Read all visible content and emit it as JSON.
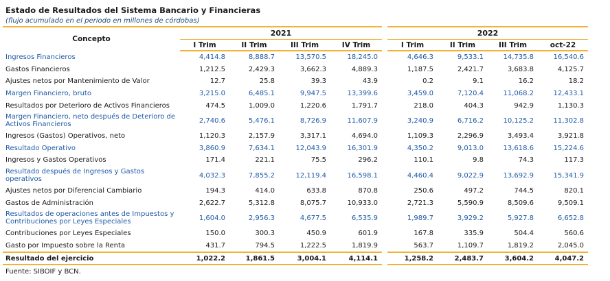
{
  "title": "Estado de Resultados del Sistema Bancario y Financieras",
  "subtitle": "(flujo acumulado en el periodo en millones de córdobas)",
  "header": {
    "concepto": "Concepto",
    "year_2021": "2021",
    "year_2022": "2022",
    "q2021": [
      "I Trim",
      "II Trim",
      "III Trim",
      "IV Trim"
    ],
    "q2022": [
      "I Trim",
      "II Trim",
      "III Trim",
      "oct-22"
    ]
  },
  "rows": [
    {
      "label": "Ingresos Financieros",
      "style": "blue",
      "v2021": [
        "4,414.8",
        "8,888.7",
        "13,570.5",
        "18,245.0"
      ],
      "v2022": [
        "4,646.3",
        "9,533.1",
        "14,735.8",
        "16,540.6"
      ]
    },
    {
      "label": "Gastos Financieros",
      "style": "",
      "v2021": [
        "1,212.5",
        "2,429.3",
        "3,662.3",
        "4,889.3"
      ],
      "v2022": [
        "1,187.5",
        "2,421.7",
        "3,683.8",
        "4,125.7"
      ]
    },
    {
      "label": "Ajustes netos por Mantenimiento de Valor",
      "style": "",
      "v2021": [
        "12.7",
        "25.8",
        "39.3",
        "43.9"
      ],
      "v2022": [
        "0.2",
        "9.1",
        "16.2",
        "18.2"
      ]
    },
    {
      "label": "Margen Financiero, bruto",
      "style": "blue",
      "v2021": [
        "3,215.0",
        "6,485.1",
        "9,947.5",
        "13,399.6"
      ],
      "v2022": [
        "3,459.0",
        "7,120.4",
        "11,068.2",
        "12,433.1"
      ]
    },
    {
      "label": "Resultados por Deterioro de Activos Financieros",
      "style": "",
      "v2021": [
        "474.5",
        "1,009.0",
        "1,220.6",
        "1,791.7"
      ],
      "v2022": [
        "218.0",
        "404.3",
        "942.9",
        "1,130.3"
      ]
    },
    {
      "label": "Margen Financiero, neto después de Deterioro de Activos Financieros",
      "style": "blue tall",
      "v2021": [
        "2,740.6",
        "5,476.1",
        "8,726.9",
        "11,607.9"
      ],
      "v2022": [
        "3,240.9",
        "6,716.2",
        "10,125.2",
        "11,302.8"
      ]
    },
    {
      "label": "Ingresos (Gastos) Operativos, neto",
      "style": "",
      "v2021": [
        "1,120.3",
        "2,157.9",
        "3,317.1",
        "4,694.0"
      ],
      "v2022": [
        "1,109.3",
        "2,296.9",
        "3,493.4",
        "3,921.8"
      ]
    },
    {
      "label": "Resultado Operativo",
      "style": "blue",
      "v2021": [
        "3,860.9",
        "7,634.1",
        "12,043.9",
        "16,301.9"
      ],
      "v2022": [
        "4,350.2",
        "9,013.0",
        "13,618.6",
        "15,224.6"
      ]
    },
    {
      "label": "Ingresos y Gastos Operativos",
      "style": "",
      "v2021": [
        "171.4",
        "221.1",
        "75.5",
        "296.2"
      ],
      "v2022": [
        "110.1",
        "9.8",
        "74.3",
        "117.3"
      ]
    },
    {
      "label": "Resultado después de Ingresos y Gastos operativos",
      "style": "blue tall",
      "v2021": [
        "4,032.3",
        "7,855.2",
        "12,119.4",
        "16,598.1"
      ],
      "v2022": [
        "4,460.4",
        "9,022.9",
        "13,692.9",
        "15,341.9"
      ]
    },
    {
      "label": "Ajustes netos por Diferencial Cambiario",
      "style": "",
      "v2021": [
        "194.3",
        "414.0",
        "633.8",
        "870.8"
      ],
      "v2022": [
        "250.6",
        "497.2",
        "744.5",
        "820.1"
      ]
    },
    {
      "label": "Gastos de Administración",
      "style": "",
      "v2021": [
        "2,622.7",
        "5,312.8",
        "8,075.7",
        "10,933.0"
      ],
      "v2022": [
        "2,721.3",
        "5,590.9",
        "8,509.6",
        "9,509.1"
      ]
    },
    {
      "label": "Resultados de operaciones antes de Impuestos y Contribuciones por Leyes Especiales",
      "style": "blue tall",
      "v2021": [
        "1,604.0",
        "2,956.3",
        "4,677.5",
        "6,535.9"
      ],
      "v2022": [
        "1,989.7",
        "3,929.2",
        "5,927.8",
        "6,652.8"
      ]
    },
    {
      "label": "Contribuciones por Leyes Especiales",
      "style": "",
      "v2021": [
        "150.0",
        "300.3",
        "450.9",
        "601.9"
      ],
      "v2022": [
        "167.8",
        "335.9",
        "504.4",
        "560.6"
      ]
    },
    {
      "label": "Gasto por Impuesto sobre la Renta",
      "style": "",
      "v2021": [
        "431.7",
        "794.5",
        "1,222.5",
        "1,819.9"
      ],
      "v2022": [
        "563.7",
        "1,109.7",
        "1,819.2",
        "2,045.0"
      ]
    }
  ],
  "total": {
    "label": "Resultado del ejercicio",
    "v2021": [
      "1,022.2",
      "1,861.5",
      "3,004.1",
      "4,114.1"
    ],
    "v2022": [
      "1,258.2",
      "2,483.7",
      "3,604.2",
      "4,047.2"
    ]
  },
  "source": "Fuente: SIBOIF y BCN."
}
